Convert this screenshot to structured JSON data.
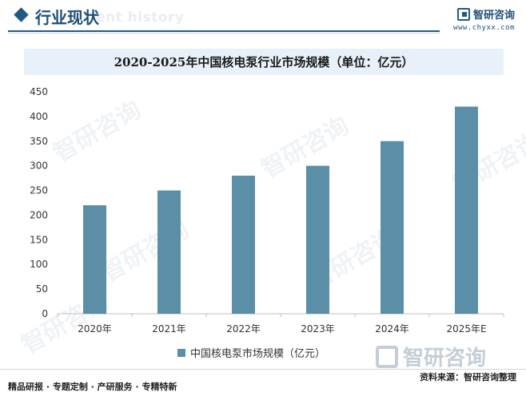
{
  "header": {
    "section_title": "行业现状",
    "section_ghost": "ent history",
    "brand_name": "智研咨询",
    "brand_url": "www.chyxx.com"
  },
  "watermark": {
    "text": "智研咨询",
    "big_text": "智研咨询"
  },
  "chart_data": {
    "type": "bar",
    "title": "2020-2025年中国核电泵行业市场规模（单位：亿元）",
    "categories": [
      "2020年",
      "2021年",
      "2022年",
      "2023年",
      "2024年",
      "2025年E"
    ],
    "series": [
      {
        "name": "中国核电泵市场规模（亿元）",
        "values": [
          220,
          250,
          280,
          300,
          350,
          420
        ],
        "color": "#5b8fa8"
      }
    ],
    "xlabel": "",
    "ylabel": "",
    "ylim": [
      0,
      450
    ],
    "yticks": [
      0,
      50,
      100,
      150,
      200,
      250,
      300,
      350,
      400,
      450
    ],
    "grid": false,
    "legend": "bottom-center"
  },
  "footer": {
    "left": "精品研报 · 专题定制 · 产研服务 · 专精特新",
    "right": "资料来源：智研咨询整理"
  }
}
